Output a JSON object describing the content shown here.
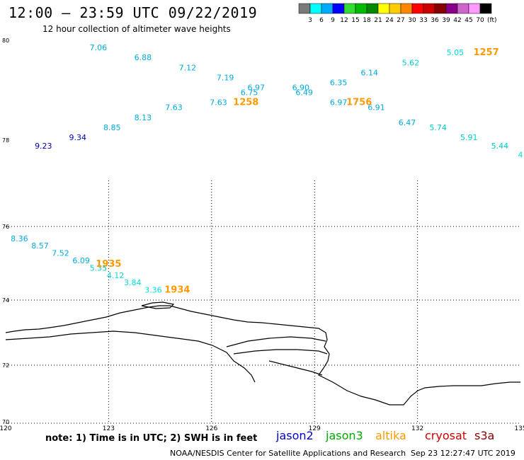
{
  "title": "12:00 – 23:59 UTC 09/22/2019",
  "subtitle": "12 hour collection of altimeter wave heights",
  "colorbar": {
    "labels": [
      "3",
      "6",
      "9",
      "12",
      "15",
      "18",
      "21",
      "24",
      "27",
      "30",
      "33",
      "36",
      "39",
      "42",
      "45",
      "70"
    ],
    "unit": "(ft)",
    "colors": [
      "#7a7a7a",
      "#00ffff",
      "#00aaff",
      "#0000ff",
      "#33dd33",
      "#00bb00",
      "#008800",
      "#ffff00",
      "#ffcc00",
      "#ff8800",
      "#ff0000",
      "#cc0000",
      "#880000",
      "#880088",
      "#cc66cc",
      "#ff99ff",
      "#000000"
    ]
  },
  "lat_labels": [
    "80",
    "78",
    "76",
    "74",
    "72",
    "70"
  ],
  "lon_labels": [
    "120",
    "123",
    "126",
    "129",
    "132",
    "135"
  ],
  "wave_heights": [
    {
      "value": "7.06",
      "lon": 122.7,
      "lat": 79.8,
      "color": "#00aadd"
    },
    {
      "value": "6.88",
      "lon": 124.0,
      "lat": 79.6,
      "color": "#00aadd"
    },
    {
      "value": "7.12",
      "lon": 125.3,
      "lat": 79.4,
      "color": "#00aadd"
    },
    {
      "value": "7.19",
      "lon": 126.4,
      "lat": 79.2,
      "color": "#00aadd"
    },
    {
      "value": "6.97",
      "lon": 127.3,
      "lat": 79.0,
      "color": "#00aadd"
    },
    {
      "value": "6.75",
      "lon": 127.1,
      "lat": 78.9,
      "color": "#00aadd"
    },
    {
      "value": "7.63",
      "lon": 126.2,
      "lat": 78.7,
      "color": "#00aadd"
    },
    {
      "value": "7.63",
      "lon": 124.9,
      "lat": 78.6,
      "color": "#00aadd"
    },
    {
      "value": "8.13",
      "lon": 124.0,
      "lat": 78.4,
      "color": "#00aadd"
    },
    {
      "value": "8.85",
      "lon": 123.1,
      "lat": 78.2,
      "color": "#00aadd"
    },
    {
      "value": "9.34",
      "lon": 122.1,
      "lat": 78.0,
      "color": "#0000aa"
    },
    {
      "value": "9.23",
      "lon": 121.1,
      "lat": 77.8,
      "color": "#0000aa"
    },
    {
      "value": "6.90",
      "lon": 128.6,
      "lat": 79.0,
      "color": "#00aadd"
    },
    {
      "value": "6.49",
      "lon": 128.7,
      "lat": 78.9,
      "color": "#00aadd"
    },
    {
      "value": "6.35",
      "lon": 129.7,
      "lat": 79.1,
      "color": "#00aadd"
    },
    {
      "value": "6.97",
      "lon": 129.7,
      "lat": 78.7,
      "color": "#00aadd"
    },
    {
      "value": "6.14",
      "lon": 130.6,
      "lat": 79.3,
      "color": "#00aadd"
    },
    {
      "value": "6.91",
      "lon": 130.8,
      "lat": 78.6,
      "color": "#00aadd"
    },
    {
      "value": "5.62",
      "lon": 131.8,
      "lat": 79.5,
      "color": "#00cccc"
    },
    {
      "value": "6.47",
      "lon": 131.7,
      "lat": 78.3,
      "color": "#00aadd"
    },
    {
      "value": "5.05",
      "lon": 133.1,
      "lat": 79.7,
      "color": "#00dddd"
    },
    {
      "value": "5.74",
      "lon": 132.6,
      "lat": 78.2,
      "color": "#00cccc"
    },
    {
      "value": "5.91",
      "lon": 133.5,
      "lat": 78.0,
      "color": "#00cccc"
    },
    {
      "value": "5.44",
      "lon": 134.4,
      "lat": 77.8,
      "color": "#00cccc"
    },
    {
      "value": "4",
      "lon": 135.0,
      "lat": 77.6,
      "color": "#00dddd"
    },
    {
      "value": "8.36",
      "lon": 120.4,
      "lat": 75.6,
      "color": "#00aadd"
    },
    {
      "value": "8.57",
      "lon": 121.0,
      "lat": 75.4,
      "color": "#00aadd"
    },
    {
      "value": "7.52",
      "lon": 121.6,
      "lat": 75.2,
      "color": "#00aadd"
    },
    {
      "value": "6.09",
      "lon": 122.2,
      "lat": 75.0,
      "color": "#00aadd"
    },
    {
      "value": "5.35",
      "lon": 122.7,
      "lat": 74.8,
      "color": "#00cccc"
    },
    {
      "value": "4.12",
      "lon": 123.2,
      "lat": 74.6,
      "color": "#00dddd"
    },
    {
      "value": "3.84",
      "lon": 123.7,
      "lat": 74.4,
      "color": "#00dddd"
    },
    {
      "value": "3.36",
      "lon": 124.3,
      "lat": 74.2,
      "color": "#00dddd"
    }
  ],
  "pass_times": [
    {
      "time": "1258",
      "lon": 127.0,
      "lat": 78.7
    },
    {
      "time": "1756",
      "lon": 130.3,
      "lat": 78.7
    },
    {
      "time": "1257",
      "lon": 134.0,
      "lat": 79.7
    },
    {
      "time": "1935",
      "lon": 123.0,
      "lat": 74.9
    },
    {
      "time": "1934",
      "lon": 125.0,
      "lat": 74.2
    }
  ],
  "note": "note: 1) Time is in UTC; 2) SWH is in feet",
  "legend": [
    {
      "name": "jason2",
      "color": "#0000cc"
    },
    {
      "name": "jason3",
      "color": "#00aa00"
    },
    {
      "name": "altika",
      "color": "#ff9900"
    },
    {
      "name": "cryosat",
      "color": "#cc0000"
    },
    {
      "name": "s3a",
      "color": "#880000"
    }
  ],
  "credit": "NOAA/NESDIS Center for Satellite Applications and Research",
  "timestamp": "Sep 23 12:27:47 UTC 2019"
}
